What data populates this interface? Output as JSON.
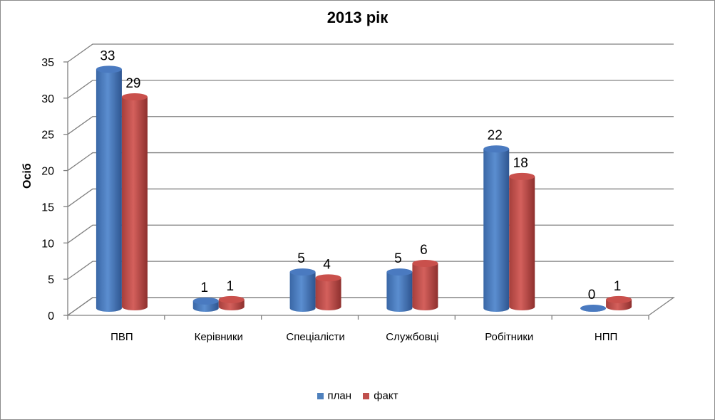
{
  "chart_data": {
    "type": "bar",
    "title": "2013 рік",
    "ylabel": "Осіб",
    "xlabel": "",
    "categories": [
      "ПВП",
      "Керівники",
      "Спеціалісти",
      "Службовці",
      "Робітники",
      "НПП"
    ],
    "series": [
      {
        "name": "план",
        "values": [
          33,
          1,
          5,
          5,
          22,
          0
        ],
        "color": "#4F81BD"
      },
      {
        "name": "факт",
        "values": [
          29,
          1,
          4,
          6,
          18,
          1
        ],
        "color": "#C0504D"
      }
    ],
    "ylim": [
      0,
      35
    ],
    "yticks": [
      "0",
      "5",
      "10",
      "15",
      "20",
      "25",
      "30",
      "35"
    ],
    "grid": true,
    "legend_position": "bottom",
    "style": "3d-cylinder"
  }
}
